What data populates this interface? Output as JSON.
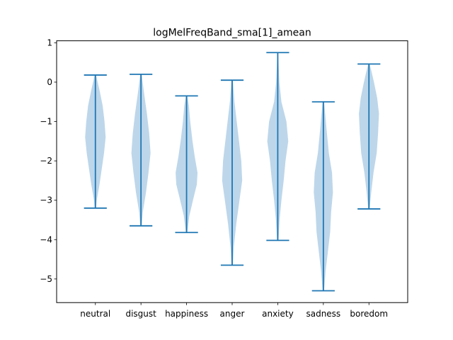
{
  "chart_data": {
    "type": "violin",
    "title": "logMelFreqBand_sma[1]_amean",
    "xlabel": "",
    "ylabel": "",
    "categories": [
      "neutral",
      "disgust",
      "happiness",
      "anger",
      "anxiety",
      "sadness",
      "boredom"
    ],
    "ylim": [
      -5.6,
      1.05
    ],
    "yticks": [
      1,
      0,
      -1,
      -2,
      -3,
      -4,
      -5
    ],
    "ytick_labels": [
      "1",
      "0",
      "−1",
      "−2",
      "−3",
      "−4",
      "−5"
    ],
    "grid": false,
    "colors": {
      "body": "#b9d4e9",
      "line": "#1f77b4"
    },
    "series": [
      {
        "min": -3.2,
        "max": 0.18,
        "profile": [
          [
            -3.2,
            0.03
          ],
          [
            -3.0,
            0.06
          ],
          [
            -2.6,
            0.18
          ],
          [
            -2.2,
            0.28
          ],
          [
            -1.8,
            0.38
          ],
          [
            -1.4,
            0.45
          ],
          [
            -1.0,
            0.4
          ],
          [
            -0.6,
            0.32
          ],
          [
            -0.2,
            0.18
          ],
          [
            0.18,
            0.03
          ]
        ]
      },
      {
        "min": -3.65,
        "max": 0.2,
        "profile": [
          [
            -3.65,
            0.03
          ],
          [
            -3.3,
            0.08
          ],
          [
            -2.8,
            0.22
          ],
          [
            -2.3,
            0.33
          ],
          [
            -1.8,
            0.42
          ],
          [
            -1.3,
            0.36
          ],
          [
            -0.8,
            0.26
          ],
          [
            -0.3,
            0.14
          ],
          [
            0.2,
            0.03
          ]
        ]
      },
      {
        "min": -3.82,
        "max": -0.35,
        "profile": [
          [
            -3.82,
            0.03
          ],
          [
            -3.4,
            0.12
          ],
          [
            -3.0,
            0.28
          ],
          [
            -2.6,
            0.45
          ],
          [
            -2.3,
            0.48
          ],
          [
            -1.9,
            0.36
          ],
          [
            -1.5,
            0.26
          ],
          [
            -1.0,
            0.16
          ],
          [
            -0.6,
            0.1
          ],
          [
            -0.35,
            0.03
          ]
        ]
      },
      {
        "min": -4.65,
        "max": 0.05,
        "profile": [
          [
            -4.65,
            0.03
          ],
          [
            -4.2,
            0.07
          ],
          [
            -3.6,
            0.18
          ],
          [
            -3.0,
            0.32
          ],
          [
            -2.5,
            0.44
          ],
          [
            -2.0,
            0.4
          ],
          [
            -1.5,
            0.3
          ],
          [
            -1.0,
            0.2
          ],
          [
            -0.5,
            0.1
          ],
          [
            0.05,
            0.03
          ]
        ]
      },
      {
        "min": -4.02,
        "max": 0.75,
        "profile": [
          [
            -4.02,
            0.03
          ],
          [
            -3.5,
            0.08
          ],
          [
            -3.0,
            0.16
          ],
          [
            -2.5,
            0.26
          ],
          [
            -2.0,
            0.34
          ],
          [
            -1.5,
            0.46
          ],
          [
            -1.0,
            0.38
          ],
          [
            -0.5,
            0.16
          ],
          [
            0.0,
            0.07
          ],
          [
            0.4,
            0.04
          ],
          [
            0.75,
            0.02
          ]
        ]
      },
      {
        "min": -5.3,
        "max": -0.5,
        "profile": [
          [
            -5.3,
            0.03
          ],
          [
            -4.8,
            0.1
          ],
          [
            -4.3,
            0.2
          ],
          [
            -3.8,
            0.3
          ],
          [
            -3.3,
            0.34
          ],
          [
            -2.8,
            0.42
          ],
          [
            -2.3,
            0.38
          ],
          [
            -1.8,
            0.24
          ],
          [
            -1.2,
            0.14
          ],
          [
            -0.8,
            0.08
          ],
          [
            -0.5,
            0.03
          ]
        ]
      },
      {
        "min": -3.22,
        "max": 0.46,
        "profile": [
          [
            -3.22,
            0.03
          ],
          [
            -2.8,
            0.1
          ],
          [
            -2.3,
            0.2
          ],
          [
            -1.8,
            0.34
          ],
          [
            -1.3,
            0.4
          ],
          [
            -0.8,
            0.44
          ],
          [
            -0.4,
            0.36
          ],
          [
            0.0,
            0.22
          ],
          [
            0.3,
            0.1
          ],
          [
            0.46,
            0.03
          ]
        ]
      }
    ]
  }
}
